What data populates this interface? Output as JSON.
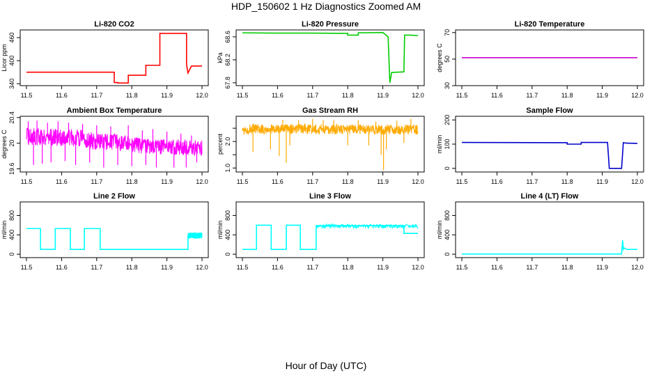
{
  "figure": {
    "title": "HDP_150602  1 Hz Diagnostics Zoomed AM",
    "xlabel": "Hour of Day (UTC)"
  },
  "chart_data": [
    {
      "type": "line",
      "title": "Li-820 CO2",
      "ylabel": "Licor ppm",
      "color": "#ff0000",
      "xlim": [
        11.5,
        12.0
      ],
      "ylim": [
        335,
        480
      ],
      "yticks": [
        340,
        400,
        460
      ],
      "xticks": [
        11.5,
        11.6,
        11.7,
        11.8,
        11.9,
        12.0
      ],
      "series": [
        {
          "x": [
            11.5,
            11.75,
            11.75,
            11.76,
            11.76,
            11.79,
            11.79,
            11.84,
            11.84,
            11.88,
            11.88,
            11.956,
            11.956,
            11.96,
            11.97,
            12.0
          ],
          "y": [
            370,
            370,
            343,
            343,
            342,
            342,
            362,
            362,
            388,
            388,
            471,
            471,
            390,
            368,
            386,
            386
          ]
        }
      ]
    },
    {
      "type": "line",
      "title": "Li-820 Pressure",
      "ylabel": "kPa",
      "color": "#00cc00",
      "xlim": [
        11.5,
        12.0
      ],
      "ylim": [
        67.75,
        68.72
      ],
      "yticks": [
        67.8,
        68.2,
        68.6
      ],
      "xticks": [
        11.5,
        11.6,
        11.7,
        11.8,
        11.9,
        12.0
      ],
      "series": [
        {
          "x": [
            11.5,
            11.6,
            11.7,
            11.8,
            11.8,
            11.83,
            11.83,
            11.9,
            11.915,
            11.92,
            11.925,
            11.96,
            11.962,
            11.98,
            12.0
          ],
          "y": [
            68.67,
            68.665,
            68.665,
            68.66,
            68.63,
            68.63,
            68.67,
            68.675,
            68.6,
            67.8,
            67.98,
            67.99,
            68.63,
            68.63,
            68.62
          ]
        }
      ]
    },
    {
      "type": "line",
      "title": "Li-820 Temperature",
      "ylabel": "degrees C",
      "color": "#cc00cc",
      "xlim": [
        11.5,
        12.0
      ],
      "ylim": [
        30,
        72
      ],
      "yticks": [
        30,
        50,
        70
      ],
      "xticks": [
        11.5,
        11.6,
        11.7,
        11.8,
        11.9,
        12.0
      ],
      "series": [
        {
          "x": [
            11.5,
            12.0
          ],
          "y": [
            51.1,
            51.1
          ]
        }
      ]
    },
    {
      "type": "line",
      "title": "Ambient Box Temperature",
      "ylabel": "degrees C",
      "color": "#ff00ff",
      "xlim": [
        11.5,
        12.0
      ],
      "ylim": [
        19.55,
        20.42
      ],
      "yticks": [
        19.6,
        20.0,
        20.4
      ],
      "xticks": [
        11.5,
        11.6,
        11.7,
        11.8,
        11.9,
        12.0
      ],
      "band": {
        "x": [
          11.5,
          11.55,
          11.6,
          11.65,
          11.7,
          11.75,
          11.8,
          11.85,
          11.9,
          11.95,
          12.0
        ],
        "lo": [
          19.96,
          19.97,
          19.95,
          19.95,
          19.88,
          19.88,
          19.86,
          19.82,
          19.83,
          19.8,
          19.8
        ],
        "hi": [
          20.24,
          20.24,
          20.22,
          20.22,
          20.15,
          20.15,
          20.1,
          20.08,
          20.06,
          20.06,
          20.05
        ]
      },
      "spikes": [
        [
          11.505,
          20.34
        ],
        [
          11.52,
          19.66
        ],
        [
          11.53,
          20.35
        ],
        [
          11.545,
          19.68
        ],
        [
          11.56,
          20.32
        ],
        [
          11.57,
          19.7
        ],
        [
          11.59,
          20.34
        ],
        [
          11.61,
          19.72
        ],
        [
          11.62,
          20.32
        ],
        [
          11.64,
          19.66
        ],
        [
          11.66,
          20.3
        ],
        [
          11.68,
          19.7
        ],
        [
          11.7,
          20.28
        ],
        [
          11.72,
          19.62
        ],
        [
          11.74,
          20.26
        ],
        [
          11.76,
          19.66
        ],
        [
          11.79,
          20.28
        ],
        [
          11.8,
          19.64
        ],
        [
          11.83,
          20.2
        ],
        [
          11.84,
          19.66
        ],
        [
          11.86,
          20.22
        ],
        [
          11.87,
          19.62
        ],
        [
          11.9,
          20.18
        ],
        [
          11.92,
          19.62
        ],
        [
          11.94,
          20.15
        ],
        [
          11.955,
          19.62
        ],
        [
          11.97,
          20.12
        ],
        [
          11.985,
          19.7
        ]
      ]
    },
    {
      "type": "line",
      "title": "Gas Stream RH",
      "ylabel": "percent",
      "color": "#ffaa00",
      "xlim": [
        11.5,
        12.0
      ],
      "ylim": [
        0.85,
        2.95
      ],
      "yticks": [
        1.0,
        1.5,
        2.0,
        2.5
      ],
      "yticklabels": [
        "1.0",
        "",
        "2.0",
        ""
      ],
      "xticks": [
        11.5,
        11.6,
        11.7,
        11.8,
        11.9,
        12.0
      ],
      "band": {
        "x": [
          11.5,
          11.6,
          11.7,
          11.8,
          11.9,
          12.0
        ],
        "lo": [
          2.25,
          2.28,
          2.28,
          2.27,
          2.26,
          2.25
        ],
        "hi": [
          2.65,
          2.66,
          2.66,
          2.65,
          2.64,
          2.63
        ]
      },
      "spikes": [
        [
          11.53,
          1.6
        ],
        [
          11.58,
          1.7
        ],
        [
          11.605,
          1.45
        ],
        [
          11.615,
          2.82
        ],
        [
          11.625,
          1.2
        ],
        [
          11.635,
          1.85
        ],
        [
          11.66,
          2.8
        ],
        [
          11.7,
          2.85
        ],
        [
          11.73,
          2.8
        ],
        [
          11.76,
          2.8
        ],
        [
          11.8,
          1.85
        ],
        [
          11.83,
          2.8
        ],
        [
          11.86,
          1.85
        ],
        [
          11.88,
          2.75
        ],
        [
          11.895,
          1.5
        ],
        [
          11.902,
          0.92
        ],
        [
          11.91,
          1.7
        ],
        [
          11.94,
          2.78
        ],
        [
          11.96,
          1.95
        ],
        [
          11.98,
          2.85
        ]
      ]
    },
    {
      "type": "line",
      "title": "Sample Flow",
      "ylabel": "ml/min",
      "color": "#0000cc",
      "xlim": [
        11.5,
        12.0
      ],
      "ylim": [
        -15,
        215
      ],
      "yticks": [
        0,
        100,
        200
      ],
      "xticks": [
        11.5,
        11.6,
        11.7,
        11.8,
        11.9,
        12.0
      ],
      "series": [
        {
          "x": [
            11.5,
            11.8,
            11.8,
            11.84,
            11.84,
            11.915,
            11.92,
            11.955,
            11.96,
            11.97,
            12.0
          ],
          "y": [
            107,
            106,
            100,
            100,
            107,
            107,
            0,
            0,
            106,
            104,
            103
          ]
        }
      ]
    },
    {
      "type": "line",
      "title": "Line 2 Flow",
      "ylabel": "ml/min",
      "color": "#00ffff",
      "xlim": [
        11.5,
        12.0
      ],
      "ylim": [
        -70,
        1080
      ],
      "yticks": [
        0,
        400,
        800
      ],
      "xticks": [
        11.5,
        11.6,
        11.7,
        11.8,
        11.9,
        12.0
      ],
      "series": [
        {
          "x": [
            11.5,
            11.54,
            11.54,
            11.582,
            11.582,
            11.625,
            11.625,
            11.665,
            11.665,
            11.71,
            11.71,
            11.96,
            11.96,
            12.0
          ],
          "y": [
            530,
            530,
            100,
            100,
            530,
            530,
            100,
            100,
            530,
            530,
            100,
            100,
            380,
            380
          ]
        }
      ],
      "noise": {
        "from": 11.96,
        "to": 12.0,
        "lo": 320,
        "hi": 450
      }
    },
    {
      "type": "line",
      "title": "Line 3 Flow",
      "ylabel": "ml/min",
      "color": "#00ffff",
      "xlim": [
        11.5,
        12.0
      ],
      "ylim": [
        -70,
        1080
      ],
      "yticks": [
        0,
        400,
        800
      ],
      "xticks": [
        11.5,
        11.6,
        11.7,
        11.8,
        11.9,
        12.0
      ],
      "series": [
        {
          "x": [
            11.5,
            11.54,
            11.54,
            11.582,
            11.582,
            11.625,
            11.625,
            11.665,
            11.665,
            11.71,
            11.71,
            11.96,
            11.96,
            12.0
          ],
          "y": [
            100,
            100,
            600,
            600,
            100,
            100,
            600,
            600,
            100,
            100,
            590,
            590,
            430,
            430
          ]
        }
      ],
      "noise": {
        "from": 11.71,
        "to": 12.0,
        "lo": 540,
        "hi": 620
      }
    },
    {
      "type": "line",
      "title": "Line 4 (LT) Flow",
      "ylabel": "ml/min",
      "color": "#00ffff",
      "xlim": [
        11.5,
        12.0
      ],
      "ylim": [
        -70,
        1080
      ],
      "yticks": [
        0,
        400,
        800
      ],
      "xticks": [
        11.5,
        11.6,
        11.7,
        11.8,
        11.9,
        12.0
      ],
      "series": [
        {
          "x": [
            11.5,
            11.955,
            11.958,
            11.96,
            11.962,
            11.97,
            12.0
          ],
          "y": [
            5,
            5,
            290,
            100,
            130,
            100,
            100
          ]
        }
      ]
    }
  ]
}
